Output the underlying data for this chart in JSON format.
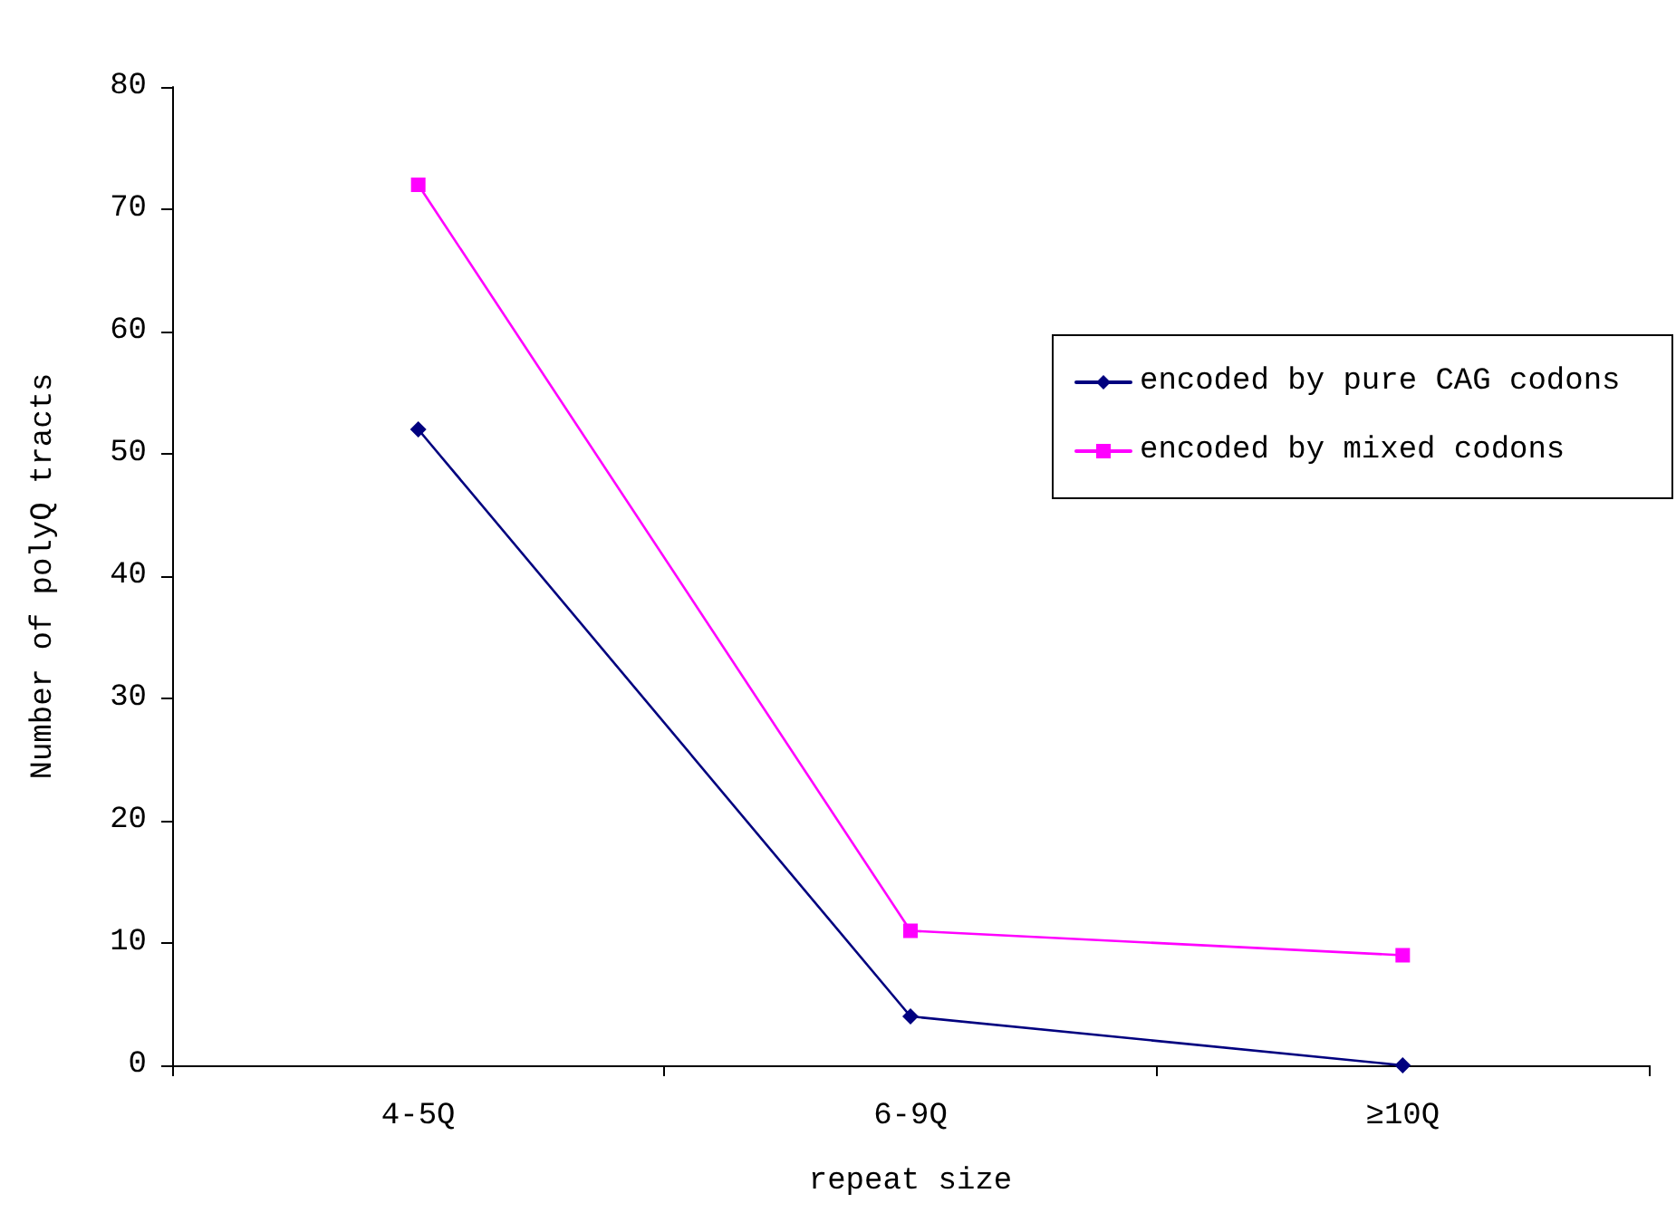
{
  "chart_data": {
    "type": "line",
    "xlabel": "repeat size",
    "ylabel": "Number of polyQ tracts",
    "categories": [
      "4-5Q",
      "6-9Q",
      "≥10Q"
    ],
    "series": [
      {
        "name": "encoded by pure CAG codons",
        "color": "#00007f",
        "marker": "diamond",
        "values": [
          52,
          4,
          0
        ]
      },
      {
        "name": "encoded by mixed codons",
        "color": "#ff00ff",
        "marker": "square",
        "values": [
          72,
          11,
          9
        ]
      }
    ],
    "ylim": [
      0,
      80
    ],
    "yticks": [
      0,
      10,
      20,
      30,
      40,
      50,
      60,
      70,
      80
    ],
    "grid": false,
    "legend": "right",
    "line_style": "solid"
  }
}
